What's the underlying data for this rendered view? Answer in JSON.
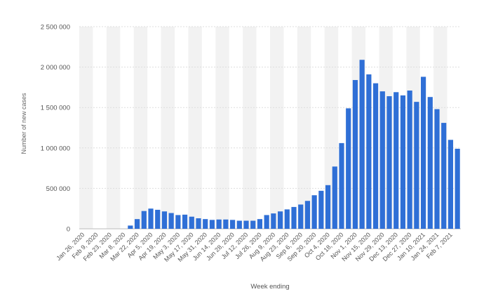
{
  "chart_data": {
    "type": "bar",
    "title": "",
    "xlabel": "Week ending",
    "ylabel": "Number of new cases",
    "ylim": [
      0,
      2500000
    ],
    "yticks": [
      0,
      500000,
      1000000,
      1500000,
      2000000,
      2500000
    ],
    "ytick_labels": [
      "0",
      "500 000",
      "1 000 000",
      "1 500 000",
      "2 000 000",
      "2 500 000"
    ],
    "grid": true,
    "bar_color": "#2f6fd6",
    "shade_color": "#f2f2f2",
    "x_tick_labels": [
      "Jan 26, 2020",
      "Feb 9, 2020",
      "Feb 23, 2020",
      "Mar 8, 2020",
      "Mar 22, 2020",
      "Apr 5, 2020",
      "Apr 19, 2020",
      "May 3, 2020",
      "May 17, 2020",
      "May 31, 2020",
      "Jun 14, 2020",
      "Jun 28, 2020",
      "Jul 12, 2020",
      "Jul 26, 2020",
      "Aug 9, 2020",
      "Aug 23, 2020",
      "Sep 6, 2020",
      "Sep 20, 2020",
      "Oct 4, 2020",
      "Oct 18, 2020",
      "Nov 1, 2020",
      "Nov 15, 2020",
      "Nov 29, 2020",
      "Dec 13, 2020",
      "Dec 27, 2020",
      "Jan 10, 2021",
      "Jan 24, 2021",
      "Feb 7, 2021"
    ],
    "categories": [
      "Jan 26, 2020",
      "Feb 2, 2020",
      "Feb 9, 2020",
      "Feb 16, 2020",
      "Feb 23, 2020",
      "Mar 1, 2020",
      "Mar 8, 2020",
      "Mar 15, 2020",
      "Mar 22, 2020",
      "Mar 29, 2020",
      "Apr 5, 2020",
      "Apr 12, 2020",
      "Apr 19, 2020",
      "Apr 26, 2020",
      "May 3, 2020",
      "May 10, 2020",
      "May 17, 2020",
      "May 24, 2020",
      "May 31, 2020",
      "Jun 7, 2020",
      "Jun 14, 2020",
      "Jun 21, 2020",
      "Jun 28, 2020",
      "Jul 5, 2020",
      "Jul 12, 2020",
      "Jul 19, 2020",
      "Jul 26, 2020",
      "Aug 2, 2020",
      "Aug 9, 2020",
      "Aug 16, 2020",
      "Aug 23, 2020",
      "Aug 30, 2020",
      "Sep 6, 2020",
      "Sep 13, 2020",
      "Sep 20, 2020",
      "Sep 27, 2020",
      "Oct 4, 2020",
      "Oct 11, 2020",
      "Oct 18, 2020",
      "Oct 25, 2020",
      "Nov 1, 2020",
      "Nov 8, 2020",
      "Nov 15, 2020",
      "Nov 22, 2020",
      "Nov 29, 2020",
      "Dec 6, 2020",
      "Dec 13, 2020",
      "Dec 20, 2020",
      "Dec 27, 2020",
      "Jan 3, 2021",
      "Jan 10, 2021",
      "Jan 17, 2021",
      "Jan 24, 2021",
      "Jan 31, 2021",
      "Feb 7, 2021",
      "Feb 14, 2021"
    ],
    "values": [
      0,
      0,
      0,
      0,
      0,
      0,
      0,
      40000,
      120000,
      220000,
      250000,
      235000,
      215000,
      195000,
      170000,
      175000,
      150000,
      130000,
      120000,
      110000,
      115000,
      115000,
      110000,
      100000,
      100000,
      100000,
      120000,
      170000,
      190000,
      215000,
      240000,
      270000,
      300000,
      345000,
      415000,
      470000,
      540000,
      770000,
      1060000,
      1490000,
      1840000,
      2090000,
      1910000,
      1800000,
      1700000,
      1640000,
      1690000,
      1650000,
      1710000,
      1570000,
      1880000,
      1630000,
      1480000,
      1310000,
      1100000,
      990000
    ]
  }
}
